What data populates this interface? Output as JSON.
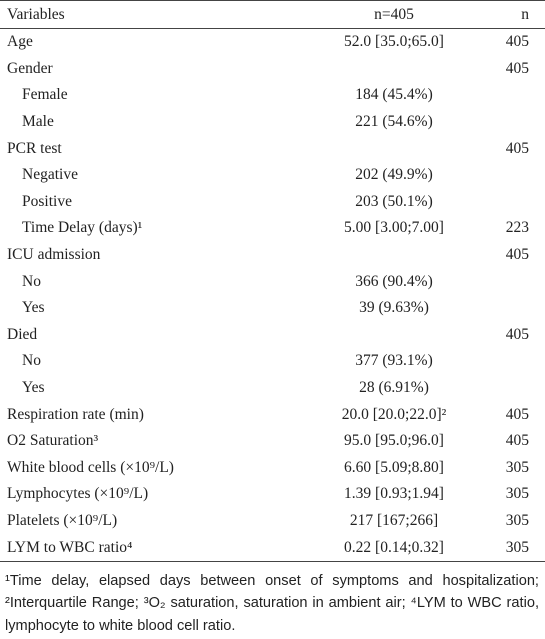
{
  "header": [
    "Variables",
    "n=405",
    "n"
  ],
  "rows": [
    {
      "label": "Age",
      "value": "52.0 [35.0;65.0]",
      "n": 405
    },
    {
      "label": "Gender",
      "n": 405,
      "items": [
        {
          "label": "Female",
          "value": "184 (45.4%)"
        },
        {
          "label": "Male",
          "value": "221 (54.6%)"
        }
      ]
    },
    {
      "label": "PCR test",
      "n": 405,
      "items": [
        {
          "label": "Negative",
          "value": "202 (49.9%)"
        },
        {
          "label": "Positive",
          "value": "203 (50.1%)"
        },
        {
          "label": "Time Delay (days)¹",
          "value": "5.00 [3.00;7.00]",
          "n": 223
        }
      ]
    },
    {
      "label": "ICU admission",
      "n": 405,
      "items": [
        {
          "label": "No",
          "value": "366 (90.4%)"
        },
        {
          "label": "Yes",
          "value": "39 (9.63%)"
        }
      ]
    },
    {
      "label": "Died",
      "n": 405,
      "items": [
        {
          "label": "No",
          "value": "377 (93.1%)"
        },
        {
          "label": "Yes",
          "value": "28 (6.91%)"
        }
      ]
    },
    {
      "label": "Respiration rate (min)",
      "value": "20.0 [20.0;22.0]²",
      "n": 405
    },
    {
      "label": "O2 Saturation³",
      "value": "95.0 [95.0;96.0]",
      "n": 405
    },
    {
      "label": "White blood cells (×10⁹/L)",
      "value": "6.60 [5.09;8.80]",
      "n": 305
    },
    {
      "label": "Lymphocytes (×10⁹/L)",
      "value": "1.39 [0.93;1.94]",
      "n": 305
    },
    {
      "label": "Platelets (×10⁹/L)",
      "value": "217 [167;266]",
      "n": 305
    },
    {
      "label": "LYM to WBC ratio⁴",
      "value": "0.22 [0.14;0.32]",
      "n": 305
    }
  ],
  "footnote": "¹Time delay, elapsed days between onset of symptoms and hospitalization; ²Interquartile Range; ³O₂ saturation, saturation in ambient air; ⁴LYM to WBC ratio, lymphocyte to white blood cell ratio."
}
